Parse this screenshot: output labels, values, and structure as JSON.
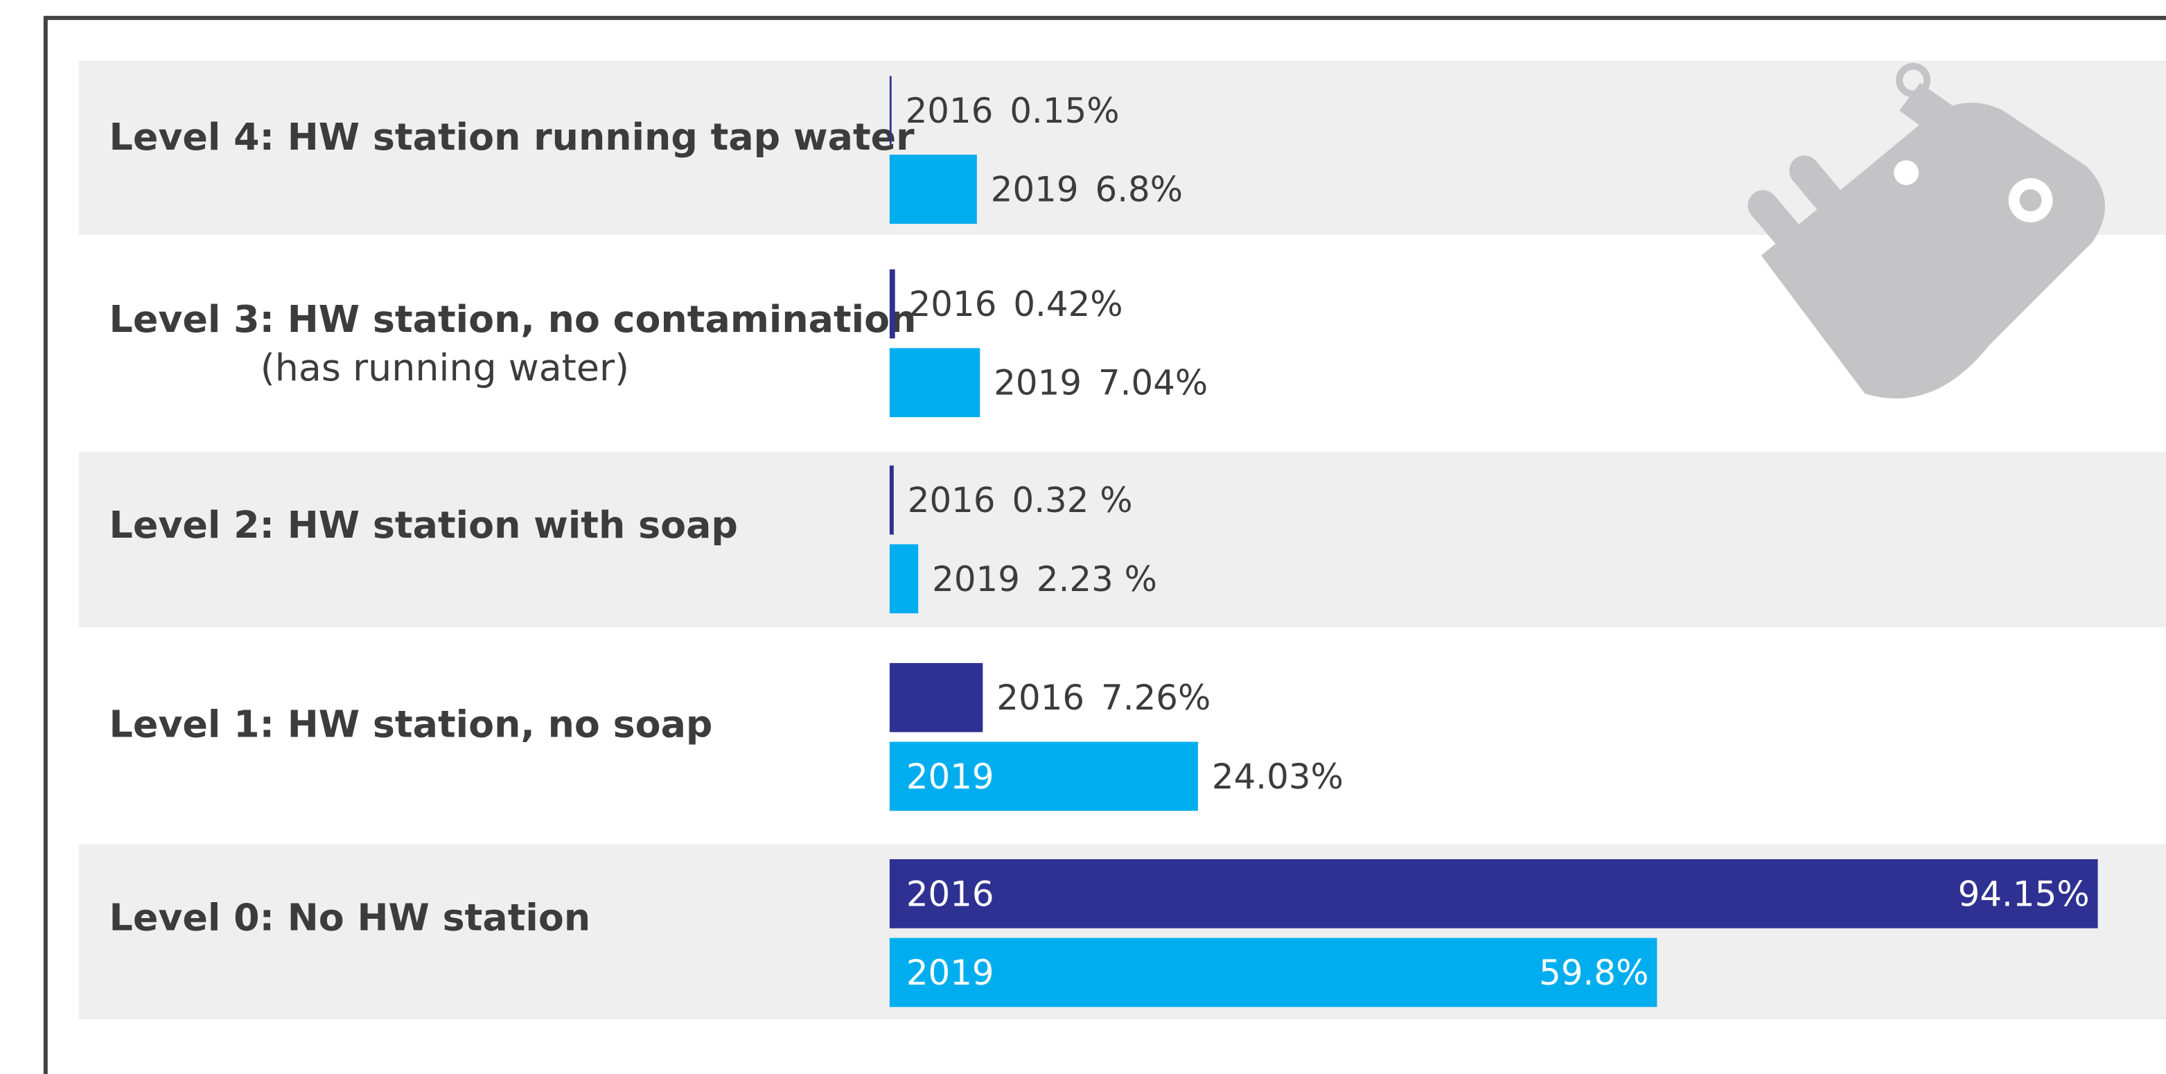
{
  "chart_data": {
    "type": "hbar",
    "categories": [
      "Level 4: HW station running tap water",
      "Level 3: HW station, no contamination",
      "Level 2: HW station with soap",
      "Level 1: HW station, no soap",
      "Level 0: No HW station"
    ],
    "category_sublabels": [
      null,
      "(has running water)",
      null,
      null,
      null
    ],
    "series": [
      {
        "name": "2016",
        "color": "#2e3192",
        "values": [
          0.15,
          0.42,
          0.32,
          7.26,
          94.15
        ],
        "value_labels": [
          "0.15%",
          "0.42%",
          "0.32 %",
          "7.26%",
          "94.15%"
        ]
      },
      {
        "name": "2019",
        "color": "#00aeef",
        "values": [
          6.8,
          7.04,
          2.23,
          24.03,
          59.8
        ],
        "value_labels": [
          "6.8%",
          "7.04%",
          "2.23 %",
          "24.03%",
          "59.8%"
        ]
      }
    ],
    "xlim": [
      0,
      100
    ]
  }
}
